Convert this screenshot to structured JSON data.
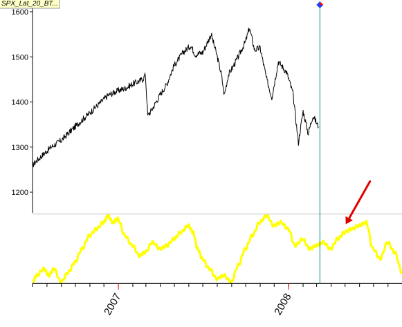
{
  "chart_data": {
    "type": "line",
    "tag": "SPX_Lat_20_BT...",
    "colors": {
      "price": "#000000",
      "oscillator": "#ffff00",
      "cursor": "#008b8b",
      "arrow": "#e00000",
      "axis": "#000000",
      "ytick_mark": "#000000",
      "year_tick": "#ff0000",
      "panel_divider": "#bbbbbb",
      "marker_top": "#ff0000",
      "marker_bottom": "#1e3cff",
      "tag_bg": "#ffffc8"
    },
    "grid": false,
    "x_range": [
      "2006-07-01",
      "2008-08-31"
    ],
    "price_panel": {
      "ylim": [
        1150,
        1610
      ],
      "yticks": [
        1200,
        1300,
        1400,
        1500,
        1600
      ],
      "ytick_labels": [
        "1200",
        "1300",
        "1400",
        "1500",
        "1600"
      ],
      "series": [
        {
          "x": [
            "2006-07-01",
            "2006-07-20",
            "2006-08-10",
            "2006-09-01",
            "2006-09-20",
            "2006-10-10",
            "2006-10-31",
            "2006-11-20",
            "2006-12-10",
            "2006-12-31",
            "2007-01-15",
            "2007-02-01",
            "2007-02-22",
            "2007-02-28",
            "2007-03-05",
            "2007-03-15",
            "2007-03-31",
            "2007-04-15",
            "2007-04-30",
            "2007-05-20",
            "2007-06-05",
            "2007-06-15",
            "2007-07-01",
            "2007-07-19",
            "2007-08-01",
            "2007-08-10",
            "2007-08-16",
            "2007-08-25",
            "2007-09-15",
            "2007-10-01",
            "2007-10-09",
            "2007-10-20",
            "2007-11-01",
            "2007-11-15",
            "2007-11-26",
            "2007-12-10",
            "2007-12-28",
            "2008-01-10",
            "2008-01-22",
            "2008-02-01",
            "2008-02-12",
            "2008-02-22",
            "2008-03-05"
          ],
          "values": [
            1260,
            1280,
            1300,
            1315,
            1335,
            1355,
            1375,
            1395,
            1415,
            1425,
            1430,
            1440,
            1450,
            1460,
            1370,
            1385,
            1415,
            1440,
            1480,
            1510,
            1525,
            1505,
            1510,
            1550,
            1500,
            1460,
            1415,
            1460,
            1500,
            1535,
            1565,
            1515,
            1520,
            1450,
            1410,
            1490,
            1465,
            1420,
            1310,
            1380,
            1330,
            1370,
            1345
          ]
        }
      ]
    },
    "oscillator_panel": {
      "series": [
        {
          "x": [
            "2006-07-01",
            "2006-07-10",
            "2006-07-25",
            "2006-08-05",
            "2006-08-16",
            "2006-08-31",
            "2006-09-16",
            "2006-09-30",
            "2006-10-15",
            "2006-10-31",
            "2006-11-15",
            "2006-11-30",
            "2006-12-10",
            "2006-12-20",
            "2006-12-31",
            "2007-01-15",
            "2007-01-31",
            "2007-02-15",
            "2007-02-28",
            "2007-03-15",
            "2007-03-31",
            "2007-04-15",
            "2007-04-30",
            "2007-05-15",
            "2007-05-31",
            "2007-06-10",
            "2007-06-20",
            "2007-06-30",
            "2007-07-15",
            "2007-07-31",
            "2007-08-15",
            "2007-08-31",
            "2007-09-15",
            "2007-09-30",
            "2007-10-15",
            "2007-10-31",
            "2007-11-15",
            "2007-11-30",
            "2007-12-15",
            "2007-12-31",
            "2008-01-15",
            "2008-01-31",
            "2008-02-15",
            "2008-02-29",
            "2008-03-15",
            "2008-03-31",
            "2008-04-15",
            "2008-04-30",
            "2008-05-15",
            "2008-05-31",
            "2008-06-15",
            "2008-06-30",
            "2008-07-15",
            "2008-07-31",
            "2008-08-15",
            "2008-08-31"
          ],
          "values": [
            0,
            0.1,
            0.2,
            0.1,
            0.2,
            0,
            0.15,
            0.3,
            0.5,
            0.7,
            0.8,
            0.9,
            1.0,
            0.9,
            0.95,
            0.7,
            0.55,
            0.4,
            0.45,
            0.6,
            0.5,
            0.55,
            0.65,
            0.75,
            0.85,
            0.75,
            0.5,
            0.35,
            0.2,
            0.05,
            0.1,
            0,
            0.25,
            0.5,
            0.7,
            0.9,
            1.0,
            0.85,
            0.9,
            0.8,
            0.55,
            0.65,
            0.5,
            0.55,
            0.6,
            0.5,
            0.65,
            0.75,
            0.8,
            0.85,
            0.9,
            0.5,
            0.35,
            0.6,
            0.45,
            0.15
          ]
        }
      ]
    },
    "x_ticks": {
      "labels": [
        "2007",
        "2008"
      ],
      "positions": [
        "2007-01-01",
        "2008-01-01"
      ]
    },
    "cursor_date": "2008-03-08",
    "annotations": [
      {
        "type": "arrow",
        "points_to": {
          "panel": "oscillator",
          "x": "2008-04-28",
          "y": 0.85
        }
      }
    ]
  }
}
